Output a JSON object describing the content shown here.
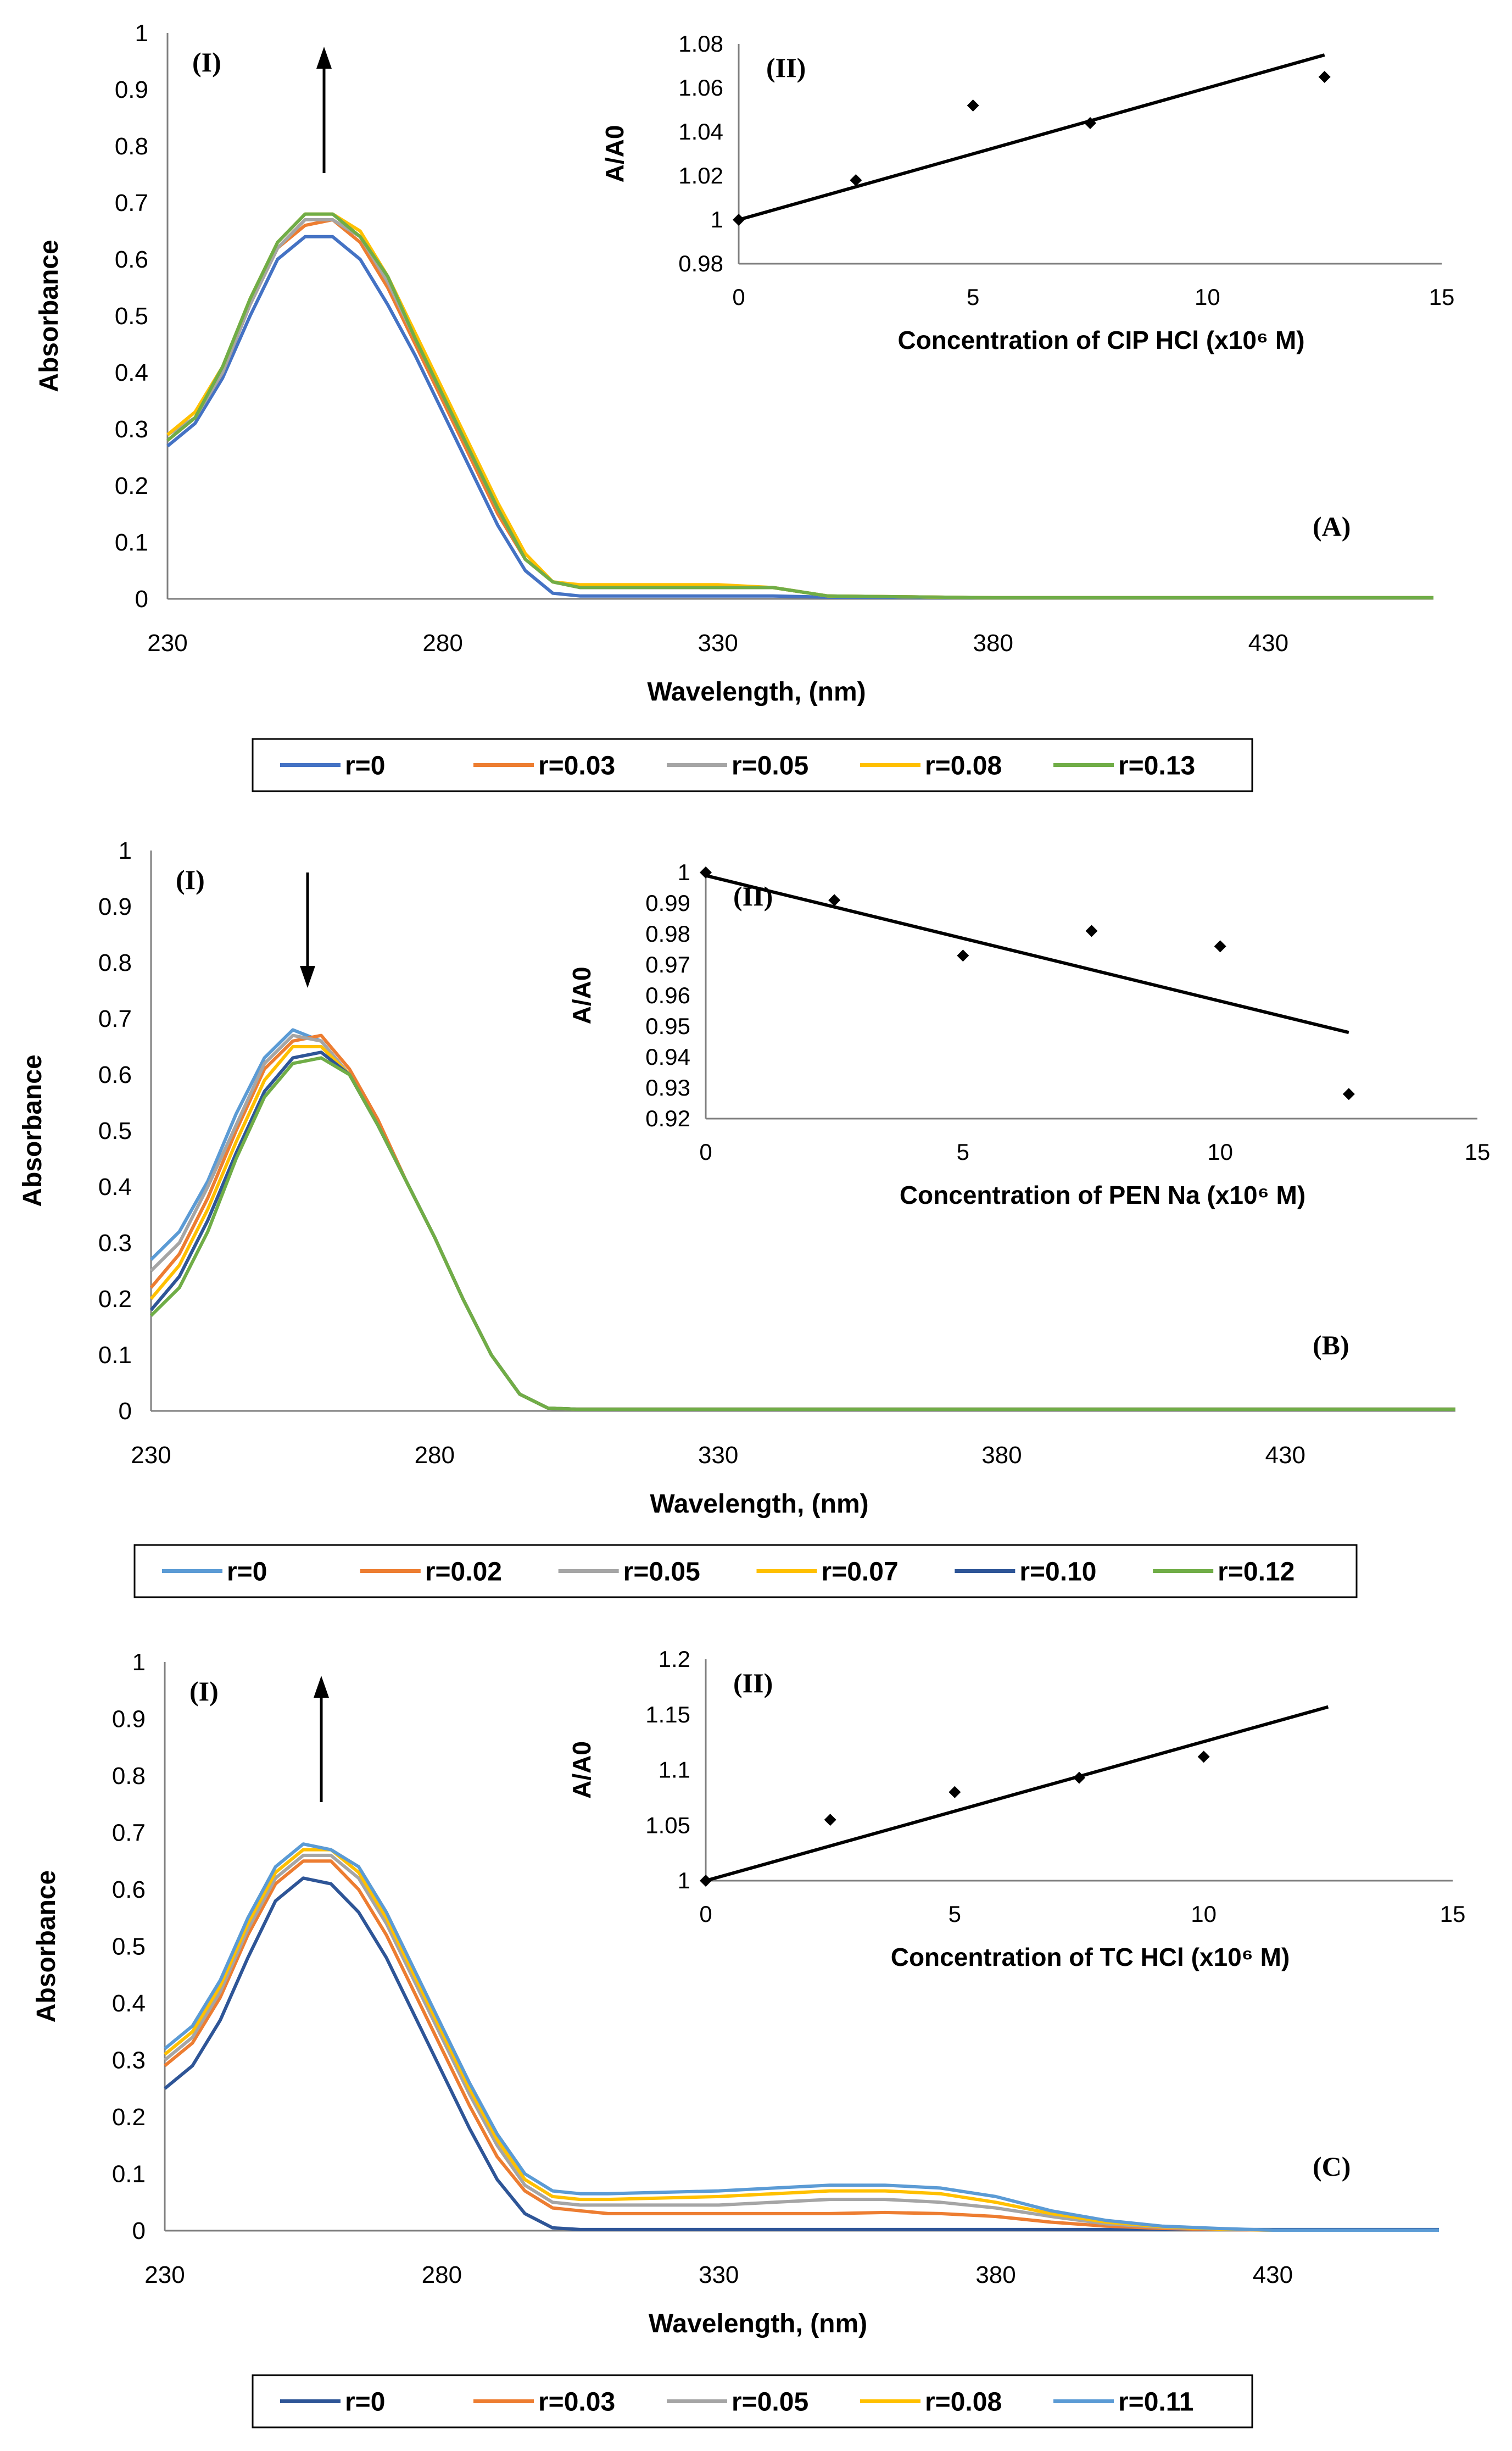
{
  "chart_data": [
    {
      "panel": "(A)",
      "type": "line",
      "xlabel": "Wavelength, (nm)",
      "ylabel": "Absorbance",
      "xlim": [
        230,
        460
      ],
      "ylim": [
        0,
        1
      ],
      "xticks": [
        "230",
        "280",
        "330",
        "380",
        "430"
      ],
      "yticks": [
        "0",
        "0.1",
        "0.2",
        "0.3",
        "0.4",
        "0.5",
        "0.6",
        "0.7",
        "0.8",
        "0.9",
        "1"
      ],
      "series_marker": "(I)",
      "arrow": "up",
      "series": [
        {
          "name": "r=0",
          "color": "#4472c4",
          "x": [
            230,
            235,
            240,
            245,
            250,
            255,
            260,
            265,
            270,
            275,
            280,
            285,
            290,
            295,
            300,
            305,
            310,
            330,
            340,
            350,
            380,
            460
          ],
          "y": [
            0.27,
            0.31,
            0.39,
            0.5,
            0.6,
            0.64,
            0.64,
            0.6,
            0.52,
            0.43,
            0.33,
            0.23,
            0.13,
            0.05,
            0.01,
            0.005,
            0.005,
            0.005,
            0.005,
            0.003,
            0.002,
            0.002
          ]
        },
        {
          "name": "r=0.03",
          "color": "#ed7d31",
          "x": [
            230,
            235,
            240,
            245,
            250,
            255,
            260,
            265,
            270,
            275,
            280,
            285,
            290,
            295,
            300,
            305,
            310,
            330,
            340,
            350,
            380,
            460
          ],
          "y": [
            0.28,
            0.32,
            0.4,
            0.52,
            0.62,
            0.66,
            0.67,
            0.63,
            0.55,
            0.45,
            0.35,
            0.25,
            0.15,
            0.07,
            0.03,
            0.02,
            0.02,
            0.02,
            0.02,
            0.005,
            0.002,
            0.002
          ]
        },
        {
          "name": "r=0.05",
          "color": "#a5a5a5",
          "x": [
            230,
            235,
            240,
            245,
            250,
            255,
            260,
            265,
            270,
            275,
            280,
            285,
            290,
            295,
            300,
            305,
            310,
            330,
            340,
            350,
            380,
            460
          ],
          "y": [
            0.29,
            0.32,
            0.4,
            0.52,
            0.62,
            0.67,
            0.67,
            0.64,
            0.56,
            0.46,
            0.36,
            0.26,
            0.16,
            0.07,
            0.03,
            0.02,
            0.02,
            0.02,
            0.02,
            0.005,
            0.002,
            0.002
          ]
        },
        {
          "name": "r=0.08",
          "color": "#ffc000",
          "x": [
            230,
            235,
            240,
            245,
            250,
            255,
            260,
            265,
            270,
            275,
            280,
            285,
            290,
            295,
            300,
            305,
            310,
            330,
            340,
            350,
            380,
            460
          ],
          "y": [
            0.29,
            0.33,
            0.41,
            0.53,
            0.63,
            0.68,
            0.68,
            0.65,
            0.57,
            0.47,
            0.37,
            0.27,
            0.17,
            0.08,
            0.03,
            0.025,
            0.025,
            0.025,
            0.02,
            0.005,
            0.002,
            0.002
          ]
        },
        {
          "name": "r=0.13",
          "color": "#70ad47",
          "x": [
            230,
            235,
            240,
            245,
            250,
            255,
            260,
            265,
            270,
            275,
            280,
            285,
            290,
            295,
            300,
            305,
            310,
            330,
            340,
            350,
            380,
            460
          ],
          "y": [
            0.28,
            0.32,
            0.41,
            0.53,
            0.63,
            0.68,
            0.68,
            0.64,
            0.57,
            0.46,
            0.36,
            0.26,
            0.16,
            0.07,
            0.03,
            0.02,
            0.02,
            0.02,
            0.02,
            0.005,
            0.002,
            0.002
          ]
        }
      ],
      "inset": {
        "label": "(II)",
        "type": "scatter",
        "xlabel": "Concentration  of CIP HCl (x10⁶ M)",
        "ylabel": "A/A0",
        "xlim": [
          0,
          15
        ],
        "ylim": [
          0.98,
          1.08
        ],
        "xticks": [
          "0",
          "5",
          "10",
          "15"
        ],
        "yticks": [
          "0.98",
          "1",
          "1.02",
          "1.04",
          "1.06",
          "1.08"
        ],
        "x": [
          0,
          2.5,
          5,
          7.5,
          12.5
        ],
        "y": [
          1.0,
          1.018,
          1.052,
          1.044,
          1.065
        ],
        "trendline": {
          "x": [
            0,
            12.5
          ],
          "y": [
            1.0,
            1.075
          ]
        }
      }
    },
    {
      "panel": "(B)",
      "type": "line",
      "xlabel": "Wavelength, (nm)",
      "ylabel": "Absorbance",
      "xlim": [
        230,
        460
      ],
      "ylim": [
        0,
        1
      ],
      "xticks": [
        "230",
        "280",
        "330",
        "380",
        "430"
      ],
      "yticks": [
        "0",
        "0.1",
        "0.2",
        "0.3",
        "0.4",
        "0.5",
        "0.6",
        "0.7",
        "0.8",
        "0.9",
        "1"
      ],
      "series_marker": "(I)",
      "arrow": "down",
      "series": [
        {
          "name": "r=0",
          "color": "#5b9bd5",
          "x": [
            230,
            235,
            240,
            245,
            250,
            255,
            260,
            265,
            270,
            275,
            280,
            285,
            290,
            295,
            300,
            305,
            460
          ],
          "y": [
            0.27,
            0.32,
            0.41,
            0.53,
            0.63,
            0.68,
            0.66,
            0.6,
            0.51,
            0.41,
            0.31,
            0.2,
            0.1,
            0.03,
            0.005,
            0.003,
            0.003
          ]
        },
        {
          "name": "r=0.02",
          "color": "#ed7d31",
          "x": [
            230,
            235,
            240,
            245,
            250,
            255,
            260,
            265,
            270,
            275,
            280,
            285,
            290,
            295,
            300,
            305,
            460
          ],
          "y": [
            0.22,
            0.28,
            0.38,
            0.5,
            0.61,
            0.66,
            0.67,
            0.61,
            0.52,
            0.41,
            0.31,
            0.2,
            0.1,
            0.03,
            0.005,
            0.003,
            0.003
          ]
        },
        {
          "name": "r=0.05",
          "color": "#a5a5a5",
          "x": [
            230,
            235,
            240,
            245,
            250,
            255,
            260,
            265,
            270,
            275,
            280,
            285,
            290,
            295,
            300,
            305,
            460
          ],
          "y": [
            0.25,
            0.3,
            0.4,
            0.51,
            0.62,
            0.67,
            0.66,
            0.6,
            0.51,
            0.41,
            0.31,
            0.2,
            0.1,
            0.03,
            0.005,
            0.003,
            0.003
          ]
        },
        {
          "name": "r=0.07",
          "color": "#ffc000",
          "x": [
            230,
            235,
            240,
            245,
            250,
            255,
            260,
            265,
            270,
            275,
            280,
            285,
            290,
            295,
            300,
            305,
            460
          ],
          "y": [
            0.2,
            0.26,
            0.36,
            0.48,
            0.59,
            0.65,
            0.65,
            0.6,
            0.51,
            0.41,
            0.31,
            0.2,
            0.1,
            0.03,
            0.005,
            0.003,
            0.003
          ]
        },
        {
          "name": "r=0.10",
          "color": "#2e5597",
          "x": [
            230,
            235,
            240,
            245,
            250,
            255,
            260,
            265,
            270,
            275,
            280,
            285,
            290,
            295,
            300,
            305,
            460
          ],
          "y": [
            0.18,
            0.24,
            0.34,
            0.46,
            0.57,
            0.63,
            0.64,
            0.6,
            0.51,
            0.41,
            0.31,
            0.2,
            0.1,
            0.03,
            0.005,
            0.003,
            0.003
          ]
        },
        {
          "name": "r=0.12",
          "color": "#70ad47",
          "x": [
            230,
            235,
            240,
            245,
            250,
            255,
            260,
            265,
            270,
            275,
            280,
            285,
            290,
            295,
            300,
            305,
            460
          ],
          "y": [
            0.17,
            0.22,
            0.32,
            0.45,
            0.56,
            0.62,
            0.63,
            0.6,
            0.51,
            0.41,
            0.31,
            0.2,
            0.1,
            0.03,
            0.005,
            0.003,
            0.003
          ]
        }
      ],
      "inset": {
        "label": "(II)",
        "type": "scatter",
        "xlabel": "Concentration  of PEN Na (x10⁶ M)",
        "ylabel": "A/A0",
        "xlim": [
          0,
          15
        ],
        "ylim": [
          0.92,
          1.0
        ],
        "xticks": [
          "0",
          "5",
          "10",
          "15"
        ],
        "yticks": [
          "0.92",
          "0.93",
          "0.94",
          "0.95",
          "0.96",
          "0.97",
          "0.98",
          "0.99",
          "1"
        ],
        "x": [
          0,
          2.5,
          5,
          7.5,
          10,
          12.5
        ],
        "y": [
          1.0,
          0.991,
          0.973,
          0.981,
          0.976,
          0.928
        ],
        "trendline": {
          "x": [
            0,
            12.5
          ],
          "y": [
            0.999,
            0.948
          ]
        }
      }
    },
    {
      "panel": "(C)",
      "type": "line",
      "xlabel": "Wavelength, (nm)",
      "ylabel": "Absorbance",
      "xlim": [
        230,
        460
      ],
      "ylim": [
        0,
        1
      ],
      "xticks": [
        "230",
        "280",
        "330",
        "380",
        "430"
      ],
      "yticks": [
        "0",
        "0.1",
        "0.2",
        "0.3",
        "0.4",
        "0.5",
        "0.6",
        "0.7",
        "0.8",
        "0.9",
        "1"
      ],
      "series_marker": "(I)",
      "arrow": "up",
      "series": [
        {
          "name": "r=0",
          "color": "#2e5597",
          "x": [
            230,
            235,
            240,
            245,
            250,
            255,
            260,
            265,
            270,
            275,
            280,
            285,
            290,
            295,
            300,
            305,
            310,
            330,
            340,
            350,
            380,
            460
          ],
          "y": [
            0.25,
            0.29,
            0.37,
            0.48,
            0.58,
            0.62,
            0.61,
            0.56,
            0.48,
            0.38,
            0.28,
            0.18,
            0.09,
            0.03,
            0.005,
            0.002,
            0.002,
            0.002,
            0.002,
            0.002,
            0.002,
            0.002
          ]
        },
        {
          "name": "r=0.03",
          "color": "#ed7d31",
          "x": [
            230,
            235,
            240,
            245,
            250,
            255,
            260,
            265,
            270,
            275,
            280,
            285,
            290,
            295,
            300,
            305,
            310,
            330,
            340,
            350,
            360,
            370,
            380,
            390,
            400,
            410,
            420,
            430,
            460
          ],
          "y": [
            0.29,
            0.33,
            0.41,
            0.52,
            0.61,
            0.65,
            0.65,
            0.6,
            0.52,
            0.42,
            0.32,
            0.22,
            0.13,
            0.07,
            0.04,
            0.035,
            0.03,
            0.03,
            0.03,
            0.03,
            0.032,
            0.03,
            0.025,
            0.015,
            0.008,
            0.004,
            0.002,
            0.001,
            0.001
          ]
        },
        {
          "name": "r=0.05",
          "color": "#a5a5a5",
          "x": [
            230,
            235,
            240,
            245,
            250,
            255,
            260,
            265,
            270,
            275,
            280,
            285,
            290,
            295,
            300,
            305,
            310,
            330,
            340,
            350,
            360,
            370,
            380,
            390,
            400,
            410,
            420,
            430,
            460
          ],
          "y": [
            0.3,
            0.34,
            0.42,
            0.53,
            0.62,
            0.66,
            0.66,
            0.62,
            0.54,
            0.44,
            0.34,
            0.24,
            0.15,
            0.08,
            0.05,
            0.045,
            0.045,
            0.045,
            0.05,
            0.055,
            0.055,
            0.05,
            0.04,
            0.025,
            0.012,
            0.006,
            0.003,
            0.001,
            0.001
          ]
        },
        {
          "name": "r=0.08",
          "color": "#ffc000",
          "x": [
            230,
            235,
            240,
            245,
            250,
            255,
            260,
            265,
            270,
            275,
            280,
            285,
            290,
            295,
            300,
            305,
            310,
            330,
            340,
            350,
            360,
            370,
            380,
            390,
            400,
            410,
            420,
            430,
            460
          ],
          "y": [
            0.31,
            0.35,
            0.43,
            0.54,
            0.63,
            0.67,
            0.67,
            0.63,
            0.55,
            0.45,
            0.35,
            0.25,
            0.16,
            0.09,
            0.06,
            0.055,
            0.055,
            0.06,
            0.065,
            0.07,
            0.07,
            0.065,
            0.05,
            0.03,
            0.015,
            0.007,
            0.003,
            0.001,
            0.001
          ]
        },
        {
          "name": "r=0.11",
          "color": "#5b9bd5",
          "x": [
            230,
            235,
            240,
            245,
            250,
            255,
            260,
            265,
            270,
            275,
            280,
            285,
            290,
            295,
            300,
            305,
            310,
            330,
            340,
            350,
            360,
            370,
            380,
            390,
            400,
            410,
            420,
            430,
            460
          ],
          "y": [
            0.32,
            0.36,
            0.44,
            0.55,
            0.64,
            0.68,
            0.67,
            0.64,
            0.56,
            0.46,
            0.36,
            0.26,
            0.17,
            0.1,
            0.07,
            0.065,
            0.065,
            0.07,
            0.075,
            0.08,
            0.08,
            0.075,
            0.06,
            0.035,
            0.018,
            0.008,
            0.004,
            0.001,
            0.001
          ]
        }
      ],
      "inset": {
        "label": "(II)",
        "type": "scatter",
        "xlabel": "Concentration  of TC HCl (x10⁶ M)",
        "ylabel": "A/A0",
        "xlim": [
          0,
          15
        ],
        "ylim": [
          1.0,
          1.2
        ],
        "xticks": [
          "0",
          "5",
          "10",
          "15"
        ],
        "yticks": [
          "1",
          "1.05",
          "1.1",
          "1.15",
          "1.2"
        ],
        "x": [
          0,
          2.5,
          5,
          7.5,
          10
        ],
        "y": [
          1.0,
          1.055,
          1.08,
          1.093,
          1.112
        ],
        "trendline": {
          "x": [
            0,
            12.5
          ],
          "y": [
            1.0,
            1.157
          ]
        }
      }
    }
  ]
}
